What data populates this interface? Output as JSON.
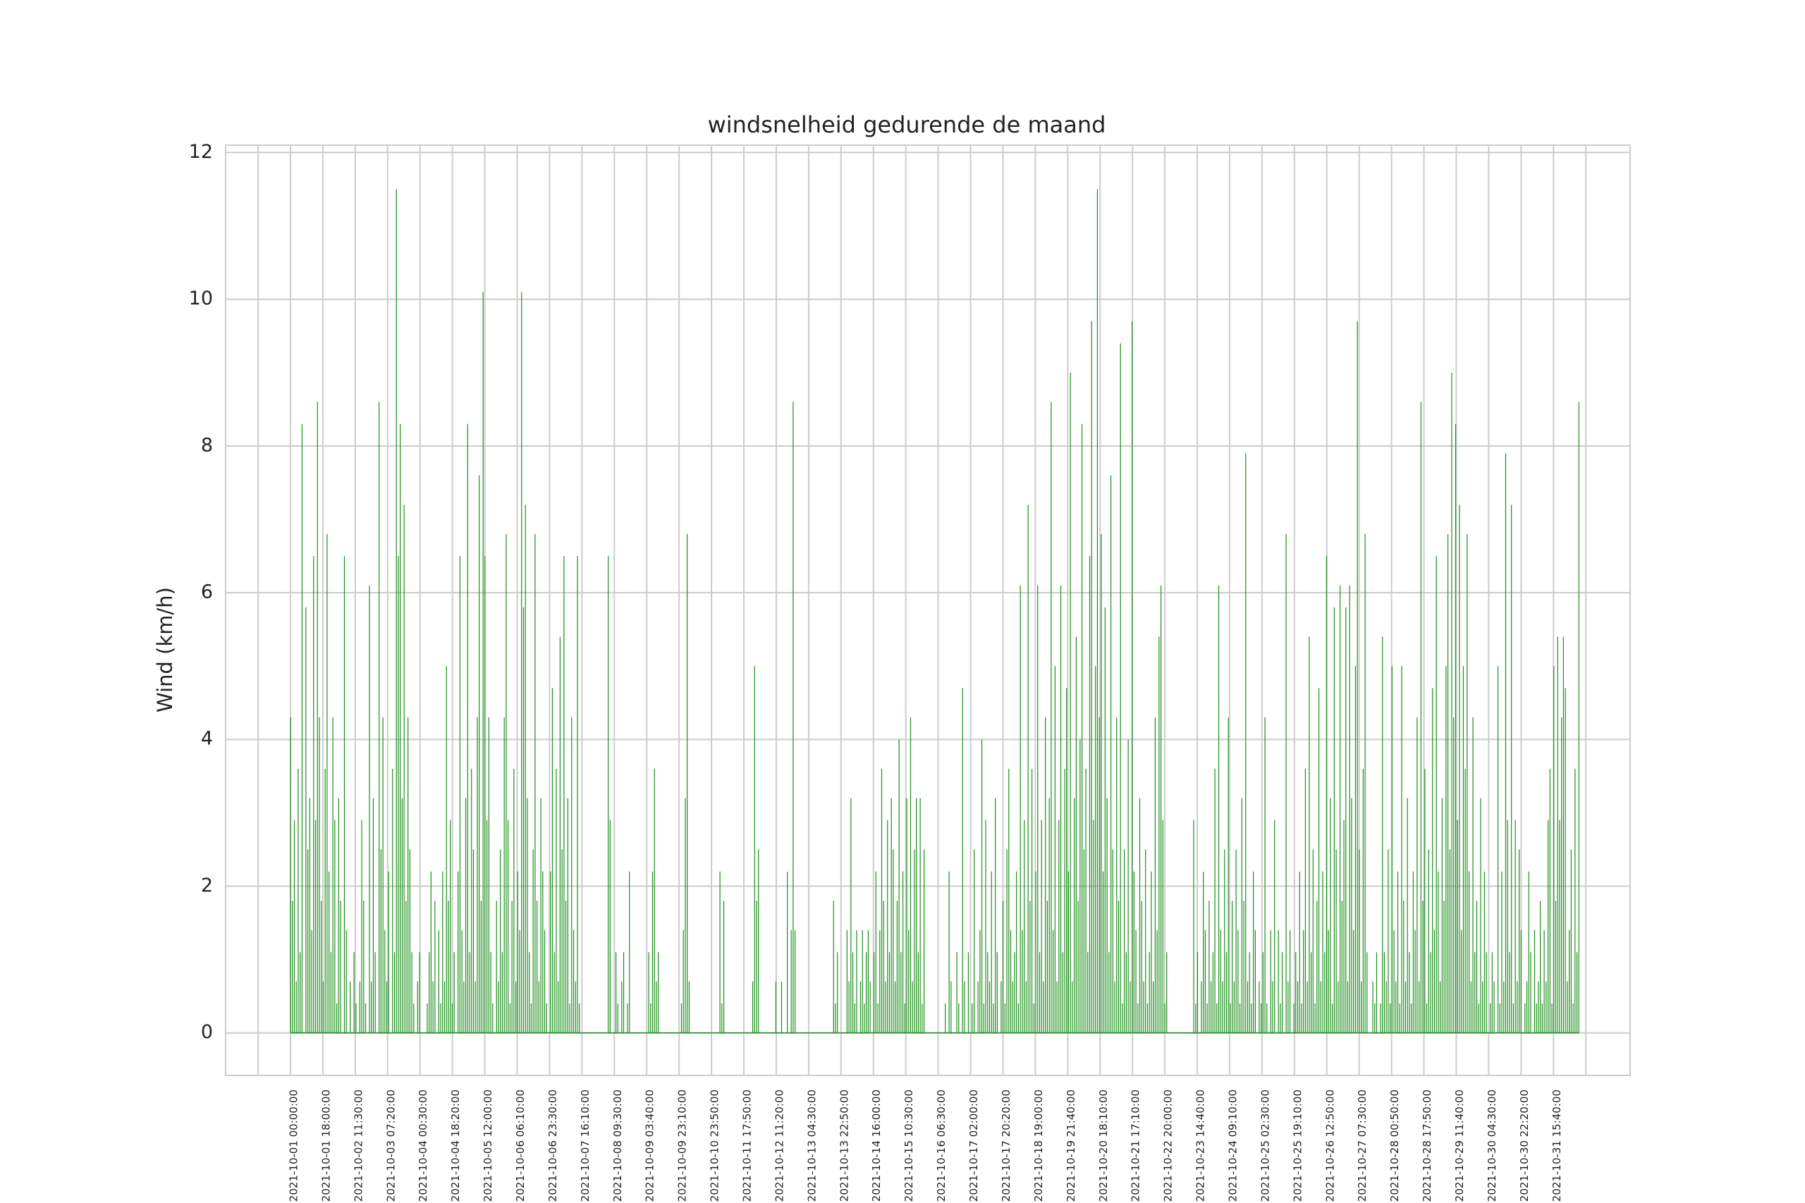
{
  "chart_data": {
    "type": "bar",
    "title": "windsnelheid gedurende de maand",
    "xlabel": "",
    "ylabel": "Wind (km/h)",
    "ylim": [
      -0.58,
      12.1
    ],
    "yticks": [
      0,
      2,
      4,
      6,
      8,
      10,
      12
    ],
    "grid": true,
    "color": "#1a8f1a",
    "x_tick_labels": [
      "2021-10-01 00:00:00",
      "2021-10-01 18:00:00",
      "2021-10-02 11:30:00",
      "2021-10-03 07:20:00",
      "2021-10-04 00:30:00",
      "2021-10-04 18:20:00",
      "2021-10-05 12:00:00",
      "2021-10-06 06:10:00",
      "2021-10-06 23:30:00",
      "2021-10-07 16:10:00",
      "2021-10-08 09:30:00",
      "2021-10-09 03:40:00",
      "2021-10-09 23:10:00",
      "2021-10-10 23:50:00",
      "2021-10-11 17:50:00",
      "2021-10-12 11:20:00",
      "2021-10-13 04:30:00",
      "2021-10-13 22:50:00",
      "2021-10-14 16:00:00",
      "2021-10-15 10:30:00",
      "2021-10-16 06:30:00",
      "2021-10-17 02:00:00",
      "2021-10-17 20:20:00",
      "2021-10-18 19:00:00",
      "2021-10-19 21:40:00",
      "2021-10-20 18:10:00",
      "2021-10-21 17:10:00",
      "2021-10-22 20:00:00",
      "2021-10-23 14:40:00",
      "2021-10-24 09:10:00",
      "2021-10-25 02:30:00",
      "2021-10-25 19:10:00",
      "2021-10-26 12:50:00",
      "2021-10-27 07:30:00",
      "2021-10-28 00:50:00",
      "2021-10-28 17:50:00",
      "2021-10-29 11:40:00",
      "2021-10-30 04:30:00",
      "2021-10-30 22:20:00",
      "2021-10-31 15:40:00"
    ],
    "series": [
      {
        "values": [
          4.3,
          1.8,
          2.9,
          0.7,
          3.6,
          1.1,
          8.3,
          0.0,
          5.8,
          2.5,
          3.2,
          1.4,
          6.5,
          2.9,
          8.6,
          4.3,
          1.8,
          0.7,
          3.6,
          6.8,
          2.2,
          1.1,
          4.3,
          2.9,
          0.4,
          3.2,
          1.8,
          0.0,
          6.5,
          1.4,
          0.0,
          0.7,
          0.0,
          1.1,
          0.4,
          0.0,
          0.7,
          2.9,
          1.8,
          0.4,
          0.0,
          6.1,
          0.7,
          3.2,
          1.1,
          0.0,
          8.6,
          2.5,
          4.3,
          1.4,
          0.7,
          2.2,
          0.0,
          3.6,
          1.1,
          11.5,
          6.5,
          8.3,
          3.2,
          7.2,
          1.8,
          4.3,
          2.5,
          1.1,
          0.4,
          0.0,
          0.7,
          1.1,
          0.0,
          0.0,
          0.0,
          0.4,
          1.1,
          2.2,
          0.7,
          1.8,
          0.0,
          1.4,
          0.4,
          2.2,
          0.7,
          5.0,
          1.8,
          2.9,
          0.4,
          1.1,
          0.0,
          2.2,
          6.5,
          1.4,
          0.7,
          3.2,
          8.3,
          1.1,
          3.6,
          2.5,
          0.7,
          4.3,
          7.6,
          1.8,
          10.1,
          6.5,
          2.9,
          4.3,
          1.1,
          0.4,
          0.0,
          1.8,
          0.7,
          2.5,
          1.1,
          4.3,
          6.8,
          2.9,
          0.4,
          1.8,
          3.6,
          0.7,
          2.2,
          1.4,
          10.1,
          5.8,
          7.2,
          3.2,
          1.1,
          0.4,
          2.5,
          6.8,
          1.8,
          0.7,
          3.2,
          2.2,
          1.4,
          0.4,
          0.0,
          2.2,
          4.7,
          1.1,
          3.6,
          0.7,
          5.4,
          2.5,
          6.5,
          1.8,
          3.2,
          0.4,
          4.3,
          1.4,
          0.7,
          6.5,
          0.4,
          0.0,
          0.0,
          0.0,
          0.0,
          0.0,
          0.0,
          0.0,
          0.0,
          0.0,
          0.0,
          0.0,
          0.0,
          0.0,
          0.0,
          6.5,
          2.9,
          0.0,
          0.0,
          1.1,
          0.4,
          0.0,
          0.7,
          1.1,
          0.0,
          0.4,
          2.2,
          0.0,
          0.0,
          0.0,
          0.0,
          0.0,
          0.0,
          0.0,
          0.0,
          0.0,
          1.1,
          0.4,
          2.2,
          3.6,
          0.7,
          1.1,
          0.0,
          0.0,
          0.0,
          0.0,
          0.0,
          0.0,
          0.0,
          0.0,
          0.0,
          0.0,
          0.0,
          0.4,
          1.4,
          3.2,
          6.8,
          0.7,
          0.0,
          0.0,
          0.0,
          0.0,
          0.0,
          0.0,
          0.0,
          0.0,
          0.0,
          0.0,
          0.0,
          0.0,
          0.0,
          0.0,
          0.0,
          2.2,
          0.4,
          1.8,
          0.0,
          0.0,
          0.0,
          0.0,
          0.0,
          0.0,
          0.0,
          0.0,
          0.0,
          0.0,
          0.0,
          0.0,
          0.0,
          0.0,
          0.7,
          5.0,
          1.8,
          2.5,
          0.0,
          0.0,
          0.0,
          0.0,
          0.0,
          0.0,
          0.0,
          0.0,
          0.7,
          0.0,
          0.0,
          0.7,
          0.0,
          0.0,
          2.2,
          0.0,
          1.4,
          8.6,
          1.4,
          0.0,
          0.0,
          0.0,
          0.0,
          0.0,
          0.0,
          0.0,
          0.0,
          0.0,
          0.0,
          0.0,
          0.0,
          0.0,
          0.0,
          0.0,
          0.0,
          0.0,
          0.0,
          0.0,
          1.8,
          0.4,
          1.1,
          0.0,
          0.0,
          0.0,
          0.0,
          1.4,
          0.7,
          3.2,
          1.1,
          0.4,
          1.4,
          0.0,
          0.7,
          1.4,
          0.4,
          1.1,
          1.4,
          0.7,
          0.0,
          1.1,
          2.2,
          0.4,
          1.4,
          3.6,
          1.8,
          0.7,
          2.9,
          1.1,
          3.2,
          2.5,
          0.7,
          1.8,
          4.0,
          1.1,
          2.2,
          0.4,
          3.2,
          1.4,
          4.3,
          0.7,
          2.5,
          3.2,
          1.1,
          3.2,
          0.4,
          2.5,
          0.0,
          0.0,
          0.0,
          0.0,
          0.0,
          0.0,
          0.0,
          0.0,
          0.0,
          0.0,
          0.4,
          0.0,
          2.2,
          0.7,
          0.0,
          0.0,
          1.1,
          0.4,
          0.0,
          4.7,
          0.7,
          0.0,
          1.1,
          0.0,
          0.4,
          2.5,
          0.0,
          0.7,
          1.4,
          4.0,
          0.4,
          2.9,
          1.1,
          0.7,
          2.2,
          0.4,
          3.2,
          1.1,
          0.0,
          0.7,
          1.8,
          0.4,
          2.5,
          3.6,
          1.4,
          0.7,
          1.1,
          2.2,
          0.4,
          6.1,
          1.4,
          2.9,
          0.7,
          7.2,
          1.8,
          3.6,
          0.4,
          2.2,
          6.1,
          1.1,
          2.9,
          0.7,
          4.3,
          1.8,
          3.2,
          8.6,
          1.4,
          5.0,
          0.7,
          2.9,
          6.1,
          1.1,
          3.6,
          4.7,
          2.2,
          9.0,
          0.7,
          3.2,
          5.4,
          1.8,
          4.0,
          8.3,
          2.5,
          3.6,
          1.1,
          6.5,
          9.7,
          2.9,
          5.0,
          11.5,
          4.3,
          6.8,
          2.2,
          5.8,
          3.2,
          1.1,
          7.6,
          2.5,
          0.7,
          4.3,
          1.8,
          9.4,
          0.4,
          2.5,
          1.1,
          4.0,
          0.7,
          9.7,
          2.2,
          1.4,
          0.4,
          3.2,
          1.8,
          0.7,
          2.5,
          0.4,
          1.1,
          2.2,
          0.7,
          4.3,
          1.4,
          5.4,
          6.1,
          2.9,
          0.4,
          1.1,
          0.0,
          0.0,
          0.0,
          0.0,
          0.0,
          0.0,
          0.0,
          0.0,
          0.0,
          0.0,
          0.0,
          0.0,
          0.0,
          2.9,
          0.4,
          1.1,
          0.0,
          0.7,
          2.2,
          1.4,
          0.4,
          1.8,
          0.7,
          1.1,
          3.6,
          0.4,
          6.1,
          1.4,
          0.7,
          2.5,
          1.1,
          4.3,
          0.4,
          1.8,
          0.7,
          2.5,
          1.4,
          0.4,
          3.2,
          1.8,
          7.9,
          0.7,
          1.1,
          0.4,
          2.2,
          1.4,
          0.0,
          0.7,
          0.4,
          1.1,
          4.3,
          0.4,
          0.0,
          1.4,
          0.7,
          2.9,
          0.0,
          1.4,
          0.4,
          1.1,
          0.0,
          6.8,
          0.7,
          1.4,
          0.0,
          0.4,
          1.1,
          0.7,
          2.2,
          0.4,
          1.4,
          3.6,
          0.7,
          5.4,
          1.1,
          2.5,
          0.4,
          1.8,
          4.7,
          0.7,
          2.2,
          1.1,
          6.5,
          1.4,
          3.2,
          0.4,
          5.8,
          2.5,
          0.7,
          6.1,
          1.8,
          2.9,
          5.8,
          0.7,
          6.1,
          3.2,
          1.4,
          5.0,
          9.7,
          2.5,
          0.7,
          3.6,
          6.8,
          1.1,
          0.0,
          0.0,
          0.7,
          0.4,
          1.1,
          0.0,
          0.4,
          5.4,
          1.1,
          0.7,
          2.5,
          0.4,
          5.0,
          1.4,
          0.7,
          2.2,
          0.4,
          5.0,
          1.8,
          0.7,
          3.2,
          1.1,
          0.4,
          2.2,
          1.4,
          4.3,
          0.7,
          8.6,
          1.8,
          3.6,
          0.4,
          2.5,
          1.1,
          4.7,
          1.4,
          6.5,
          2.2,
          0.7,
          3.2,
          1.8,
          5.0,
          6.8,
          2.5,
          9.0,
          4.3,
          8.3,
          2.9,
          7.2,
          1.4,
          5.0,
          3.6,
          6.8,
          2.2,
          0.7,
          4.3,
          1.1,
          1.8,
          0.4,
          3.2,
          0.7,
          2.2,
          1.1,
          0.0,
          0.4,
          1.1,
          0.7,
          0.0,
          5.0,
          0.4,
          2.2,
          0.7,
          7.9,
          2.9,
          1.1,
          7.2,
          0.4,
          2.9,
          0.7,
          2.5,
          1.4,
          0.0,
          0.4,
          0.7,
          2.2,
          1.1,
          0.0,
          1.4,
          0.4,
          0.7,
          1.8,
          0.4,
          1.4,
          0.7,
          2.9,
          3.6,
          0.4,
          5.0,
          1.8,
          5.4,
          2.9,
          4.3,
          5.4,
          4.7,
          0.7,
          1.4,
          2.5,
          0.4,
          3.6,
          1.1,
          8.6
        ]
      }
    ]
  }
}
